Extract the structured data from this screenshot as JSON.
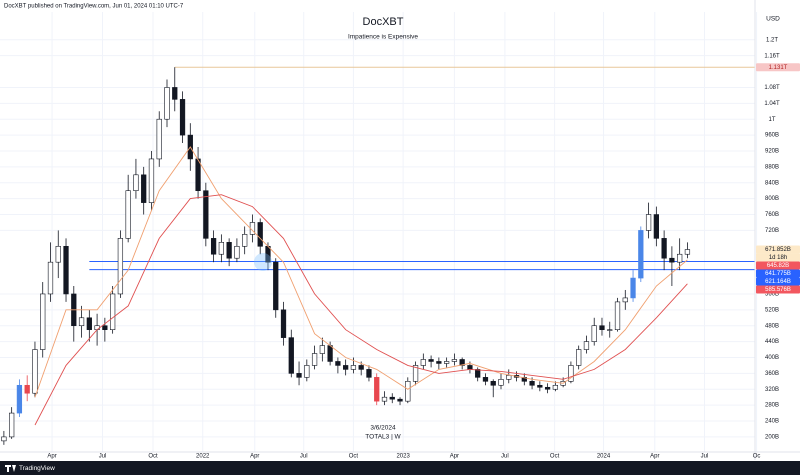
{
  "chart_data": {
    "type": "candlestick",
    "header": "DocXBT published on TradingView.com, Jun 01, 2024 01:10 UTC-7",
    "title": "DocXBT",
    "subtitle": "Impatience is Expensive",
    "currency": "USD",
    "annotation_date": "3/6/2024",
    "symbol": "TOTAL3 | W",
    "brand": "TradingView",
    "countdown": "1d 18h",
    "up_color": "#ffffff",
    "down_color": "#131722",
    "candles": [
      [
        190,
        215,
        180,
        200
      ],
      [
        200,
        275,
        195,
        260
      ],
      [
        260,
        345,
        250,
        330
      ],
      [
        330,
        355,
        290,
        310
      ],
      [
        310,
        440,
        300,
        420
      ],
      [
        420,
        590,
        400,
        560
      ],
      [
        560,
        690,
        540,
        640
      ],
      [
        640,
        720,
        600,
        680
      ],
      [
        680,
        700,
        540,
        560
      ],
      [
        560,
        580,
        440,
        480
      ],
      [
        480,
        530,
        450,
        500
      ],
      [
        500,
        520,
        440,
        470
      ],
      [
        470,
        510,
        430,
        480
      ],
      [
        480,
        500,
        440,
        470
      ],
      [
        470,
        580,
        460,
        560
      ],
      [
        560,
        720,
        550,
        700
      ],
      [
        700,
        860,
        690,
        820
      ],
      [
        820,
        900,
        800,
        860
      ],
      [
        860,
        880,
        760,
        790
      ],
      [
        790,
        920,
        770,
        900
      ],
      [
        900,
        1020,
        880,
        1000
      ],
      [
        1000,
        1100,
        980,
        1080
      ],
      [
        1080,
        1131,
        1020,
        1050
      ],
      [
        1050,
        1070,
        940,
        960
      ],
      [
        960,
        990,
        870,
        900
      ],
      [
        900,
        930,
        800,
        820
      ],
      [
        820,
        840,
        680,
        700
      ],
      [
        700,
        720,
        640,
        660
      ],
      [
        660,
        710,
        640,
        690
      ],
      [
        690,
        700,
        630,
        650
      ],
      [
        650,
        700,
        640,
        680
      ],
      [
        680,
        730,
        660,
        710
      ],
      [
        710,
        760,
        690,
        740
      ],
      [
        740,
        750,
        660,
        680
      ],
      [
        680,
        690,
        620,
        640
      ],
      [
        640,
        650,
        500,
        520
      ],
      [
        520,
        540,
        430,
        450
      ],
      [
        450,
        470,
        350,
        360
      ],
      [
        360,
        390,
        330,
        350
      ],
      [
        350,
        395,
        340,
        380
      ],
      [
        380,
        430,
        370,
        410
      ],
      [
        410,
        450,
        390,
        430
      ],
      [
        430,
        440,
        380,
        390
      ],
      [
        390,
        400,
        360,
        380
      ],
      [
        380,
        395,
        355,
        370
      ],
      [
        370,
        400,
        360,
        380
      ],
      [
        380,
        390,
        355,
        370
      ],
      [
        370,
        380,
        340,
        350
      ],
      [
        350,
        360,
        280,
        290
      ],
      [
        290,
        315,
        280,
        300
      ],
      [
        300,
        310,
        285,
        295
      ],
      [
        295,
        300,
        280,
        290
      ],
      [
        290,
        350,
        285,
        340
      ],
      [
        340,
        390,
        330,
        380
      ],
      [
        380,
        410,
        370,
        395
      ],
      [
        395,
        405,
        375,
        390
      ],
      [
        390,
        400,
        370,
        385
      ],
      [
        385,
        400,
        375,
        390
      ],
      [
        390,
        410,
        380,
        395
      ],
      [
        395,
        400,
        370,
        380
      ],
      [
        380,
        390,
        360,
        370
      ],
      [
        370,
        375,
        340,
        350
      ],
      [
        350,
        360,
        330,
        340
      ],
      [
        340,
        345,
        300,
        330
      ],
      [
        330,
        360,
        320,
        345
      ],
      [
        345,
        370,
        335,
        355
      ],
      [
        355,
        365,
        340,
        350
      ],
      [
        350,
        360,
        330,
        340
      ],
      [
        340,
        350,
        320,
        330
      ],
      [
        330,
        340,
        315,
        325
      ],
      [
        325,
        335,
        310,
        320
      ],
      [
        320,
        340,
        315,
        330
      ],
      [
        330,
        350,
        325,
        340
      ],
      [
        340,
        390,
        335,
        380
      ],
      [
        380,
        430,
        370,
        420
      ],
      [
        420,
        455,
        410,
        440
      ],
      [
        440,
        500,
        430,
        480
      ],
      [
        480,
        500,
        455,
        470
      ],
      [
        470,
        490,
        450,
        470
      ],
      [
        470,
        550,
        465,
        540
      ],
      [
        540,
        570,
        520,
        550
      ],
      [
        550,
        620,
        540,
        600
      ],
      [
        600,
        730,
        590,
        720
      ],
      [
        720,
        790,
        700,
        760
      ],
      [
        760,
        780,
        680,
        700
      ],
      [
        700,
        720,
        620,
        650
      ],
      [
        650,
        680,
        580,
        640
      ],
      [
        640,
        700,
        620,
        660
      ],
      [
        660,
        690,
        650,
        671.852
      ]
    ],
    "highlighted": [
      {
        "index": 2,
        "color": "#4a86e8"
      },
      {
        "index": 3,
        "color": "#e8474f"
      },
      {
        "index": 48,
        "color": "#e8474f"
      },
      {
        "index": 81,
        "color": "#4a86e8"
      },
      {
        "index": 82,
        "color": "#4a86e8"
      }
    ],
    "ma_lines": [
      {
        "color": "#f0a070",
        "x": [
          4,
          8,
          12,
          16,
          20,
          24,
          28,
          32,
          36,
          40,
          44,
          48,
          52,
          56,
          60,
          64,
          68,
          72,
          76,
          80,
          84,
          88
        ],
        "values": [
          300,
          520,
          520,
          620,
          820,
          930,
          800,
          720,
          640,
          460,
          400,
          370,
          320,
          370,
          385,
          360,
          345,
          335,
          390,
          470,
          580,
          645.82
        ]
      },
      {
        "color": "#e05050",
        "x": [
          4,
          8,
          12,
          16,
          20,
          24,
          28,
          32,
          36,
          40,
          44,
          48,
          52,
          56,
          60,
          64,
          68,
          72,
          76,
          80,
          84,
          88
        ],
        "values": [
          230,
          380,
          470,
          530,
          700,
          800,
          810,
          780,
          700,
          560,
          470,
          420,
          380,
          360,
          370,
          365,
          355,
          345,
          370,
          420,
          500,
          585.576
        ]
      }
    ],
    "hlines": [
      {
        "value": 1131,
        "start": 22,
        "color": "#e8c79a"
      },
      {
        "value": 641.775,
        "start": 11,
        "color": "#2962ff"
      },
      {
        "value": 621.164,
        "start": 11,
        "color": "#2962ff"
      }
    ],
    "price_labels": [
      {
        "value": 1131,
        "label": "1.131T",
        "color": "#f7c6c6",
        "text_color": "#b02020"
      },
      {
        "value": 671.852,
        "label": "671.852B",
        "color": "#fde9c8",
        "text_color": "#131722"
      },
      {
        "value": 645.82,
        "label": "645.82B",
        "color": "#f2575f",
        "text_color": "#ffffff"
      },
      {
        "value": 641.775,
        "label": "641.775B",
        "color": "#2962ff",
        "text_color": "#ffffff"
      },
      {
        "value": 621.164,
        "label": "621.164B",
        "color": "#2962ff",
        "text_color": "#ffffff"
      },
      {
        "value": 585.576,
        "label": "585.576B",
        "color": "#f2575f",
        "text_color": "#ffffff"
      }
    ],
    "xlim": [
      -0.5,
      96.7
    ],
    "ylim": [
      162,
      1270
    ],
    "xticks": [
      {
        "value": 6.2,
        "label": "Apr"
      },
      {
        "value": 12.7,
        "label": "Jul"
      },
      {
        "value": 19.2,
        "label": "Oct"
      },
      {
        "value": 25.6,
        "label": "2022"
      },
      {
        "value": 32.3,
        "label": "Apr"
      },
      {
        "value": 38.6,
        "label": "Jul"
      },
      {
        "value": 45.0,
        "label": "Oct"
      },
      {
        "value": 51.4,
        "label": "2023"
      },
      {
        "value": 58.0,
        "label": "Apr"
      },
      {
        "value": 64.5,
        "label": "Jul"
      },
      {
        "value": 70.9,
        "label": "Oct"
      },
      {
        "value": 77.2,
        "label": "2024"
      },
      {
        "value": 83.8,
        "label": "Apr"
      },
      {
        "value": 90.2,
        "label": "Jul"
      },
      {
        "value": 96.9,
        "label": "Oc"
      }
    ],
    "yticks": [
      {
        "value": 200,
        "label": "200B"
      },
      {
        "value": 240,
        "label": "240B"
      },
      {
        "value": 280,
        "label": "280B"
      },
      {
        "value": 320,
        "label": "320B"
      },
      {
        "value": 360,
        "label": "360B"
      },
      {
        "value": 400,
        "label": "400B"
      },
      {
        "value": 440,
        "label": "440B"
      },
      {
        "value": 480,
        "label": "480B"
      },
      {
        "value": 520,
        "label": "520B"
      },
      {
        "value": 560,
        "label": "560B"
      },
      {
        "value": 720,
        "label": "720B"
      },
      {
        "value": 760,
        "label": "760B"
      },
      {
        "value": 800,
        "label": "800B"
      },
      {
        "value": 840,
        "label": "840B"
      },
      {
        "value": 880,
        "label": "880B"
      },
      {
        "value": 920,
        "label": "920B"
      },
      {
        "value": 960,
        "label": "960B"
      },
      {
        "value": 1000,
        "label": "1T"
      },
      {
        "value": 1040,
        "label": "1.04T"
      },
      {
        "value": 1080,
        "label": "1.08T"
      },
      {
        "value": 1160,
        "label": "1.16T"
      },
      {
        "value": 1200,
        "label": "1.2T"
      }
    ],
    "grid": true
  }
}
